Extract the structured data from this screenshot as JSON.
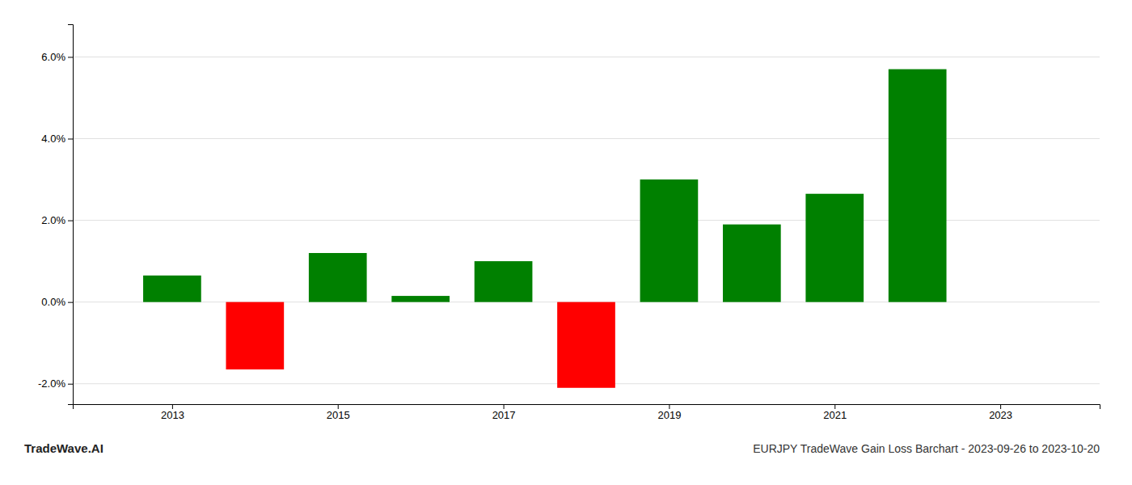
{
  "chart_data": {
    "type": "bar",
    "title": "EURJPY TradeWave Gain Loss Barchart - 2023-09-26 to 2023-10-20",
    "annotations": [
      "TradeWave.AI"
    ],
    "x": [
      2013,
      2014,
      2015,
      2016,
      2017,
      2018,
      2019,
      2020,
      2021,
      2022
    ],
    "values": [
      0.0065,
      -0.0165,
      0.012,
      0.0015,
      0.01,
      -0.021,
      0.03,
      0.019,
      0.0265,
      0.057
    ],
    "colors": [
      "#008000",
      "#ff0000",
      "#008000",
      "#008000",
      "#008000",
      "#ff0000",
      "#008000",
      "#008000",
      "#008000",
      "#008000"
    ],
    "xlim": [
      2011.8,
      2024.2
    ],
    "xticks": [
      2013,
      2015,
      2017,
      2019,
      2021,
      2023
    ],
    "ylim": [
      -0.025,
      0.068
    ],
    "yticks": [
      {
        "value": -0.02,
        "label": "-2.0%"
      },
      {
        "value": 0.0,
        "label": "0.0%"
      },
      {
        "value": 0.02,
        "label": "2.0%"
      },
      {
        "value": 0.04,
        "label": "4.0%"
      },
      {
        "value": 0.06,
        "label": "6.0%"
      }
    ],
    "grid": true
  }
}
